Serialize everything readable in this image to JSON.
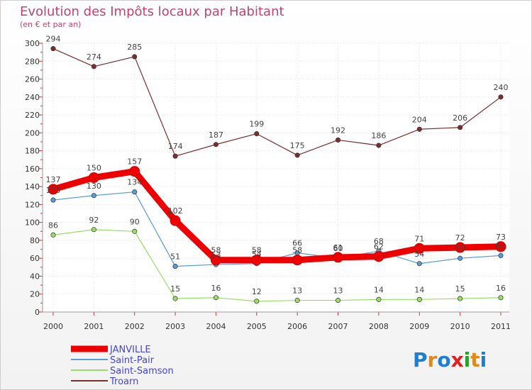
{
  "chart_data": {
    "type": "line",
    "title": "Evolution des Impôts locaux par Habitant",
    "subtitle": "(en € et par an)",
    "x": [
      "2000",
      "2001",
      "2002",
      "2003",
      "2004",
      "2005",
      "2006",
      "2007",
      "2008",
      "2009",
      "2010",
      "2011"
    ],
    "ylim": [
      0,
      300
    ],
    "yticks": [
      "0",
      "20",
      "40",
      "60",
      "80",
      "100",
      "120",
      "140",
      "160",
      "180",
      "200",
      "220",
      "240",
      "260",
      "280",
      "300"
    ],
    "grid": true,
    "legend_position": "bottom-left",
    "series": [
      {
        "name": "JANVILLE",
        "color": "#ee0000",
        "values": [
          137,
          150,
          157,
          102,
          58,
          58,
          58,
          61,
          62,
          71,
          72,
          73
        ]
      },
      {
        "name": "Saint-Pair",
        "color": "#5b9bd5",
        "values": [
          125,
          130,
          134,
          51,
          53,
          54,
          66,
          60,
          68,
          54,
          60,
          63
        ]
      },
      {
        "name": "Saint-Samson",
        "color": "#99dd66",
        "values": [
          86,
          92,
          90,
          15,
          16,
          12,
          13,
          13,
          14,
          14,
          15,
          16
        ]
      },
      {
        "name": "Troarn",
        "color": "#7a2e2e",
        "values": [
          294,
          274,
          285,
          174,
          187,
          199,
          175,
          192,
          186,
          204,
          206,
          240
        ]
      }
    ]
  },
  "logo": {
    "text": "Proxiti"
  }
}
